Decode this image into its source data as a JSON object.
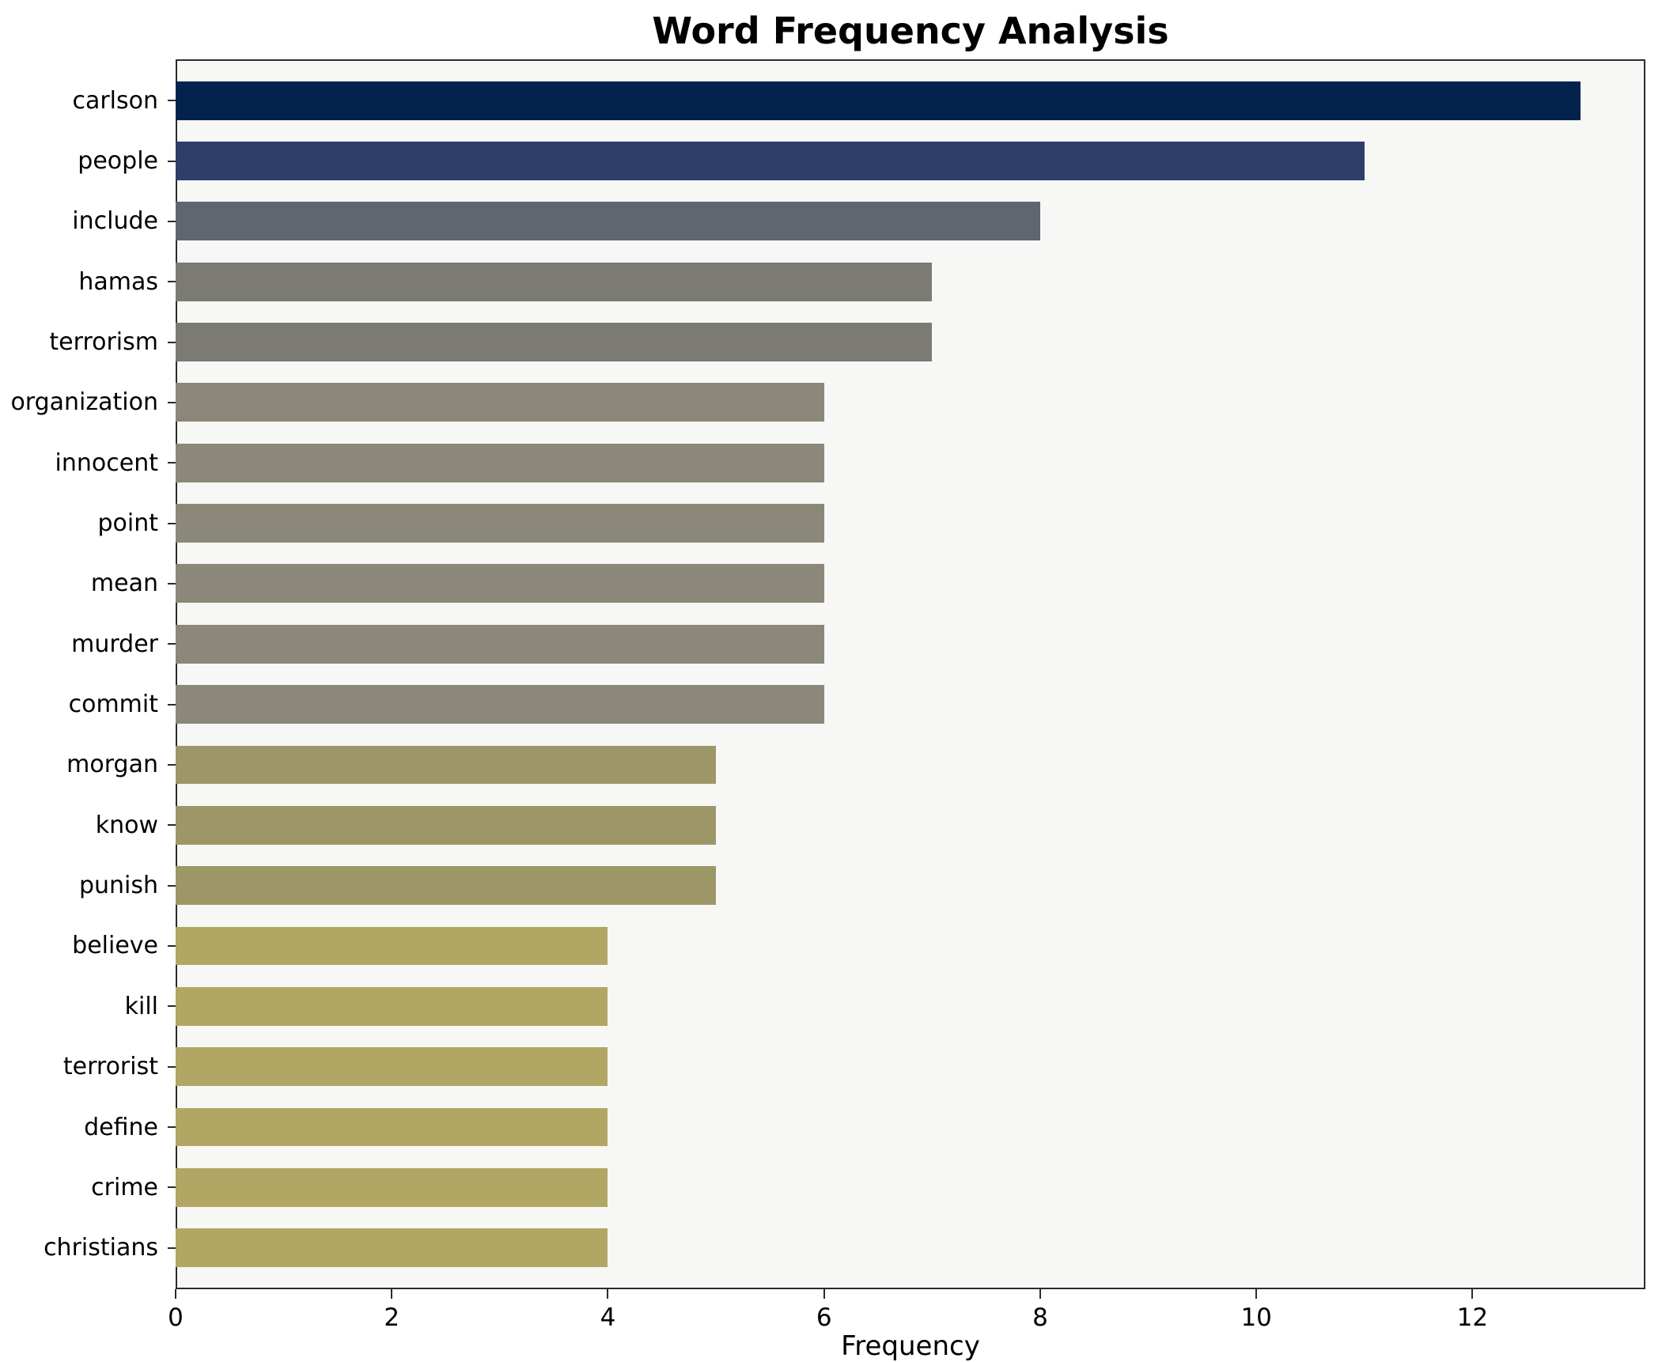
{
  "chart_data": {
    "type": "bar",
    "orientation": "horizontal",
    "title": "Word Frequency Analysis",
    "xlabel": "Frequency",
    "categories": [
      "carlson",
      "people",
      "include",
      "hamas",
      "terrorism",
      "organization",
      "innocent",
      "point",
      "mean",
      "murder",
      "commit",
      "morgan",
      "know",
      "punish",
      "believe",
      "kill",
      "terrorist",
      "define",
      "crime",
      "christians"
    ],
    "values": [
      13,
      11,
      8,
      7,
      7,
      6,
      6,
      6,
      6,
      6,
      6,
      5,
      5,
      5,
      4,
      4,
      4,
      4,
      4,
      4
    ],
    "colors": [
      "#03234e",
      "#2d3e6b",
      "#61656f",
      "#7b7a73",
      "#7b7a73",
      "#8b8879",
      "#8b8879",
      "#8b8879",
      "#8b8879",
      "#8b8879",
      "#8b8879",
      "#9d9768",
      "#9d9768",
      "#9d9768",
      "#b1a663",
      "#b1a663",
      "#b1a663",
      "#b1a663",
      "#b1a663",
      "#b1a663"
    ],
    "xlim": [
      0,
      13.6
    ],
    "xticks": [
      0,
      2,
      4,
      6,
      8,
      10,
      12
    ],
    "grid": false,
    "legend_position": "none",
    "plot_bg": "#f7f7f5"
  }
}
